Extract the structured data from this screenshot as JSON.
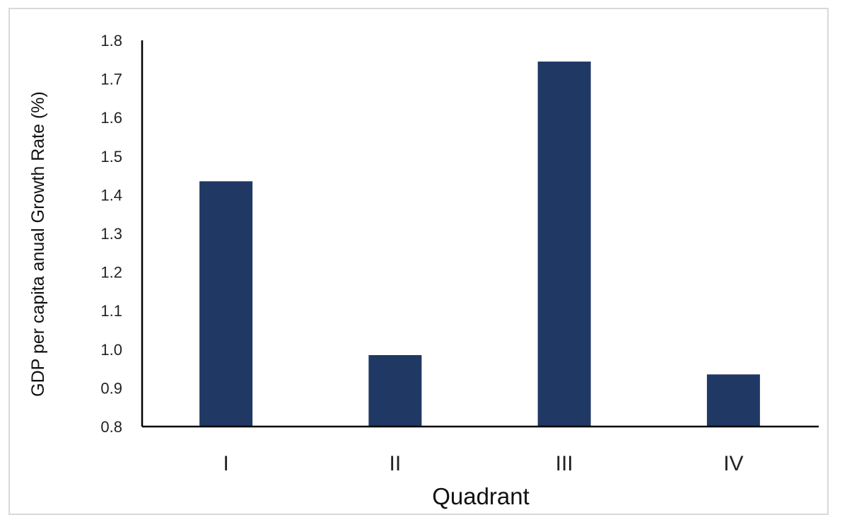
{
  "chart_data": {
    "type": "bar",
    "categories": [
      "I",
      "II",
      "III",
      "IV"
    ],
    "values": [
      1.435,
      0.985,
      1.745,
      0.935
    ],
    "xlabel": "Quadrant",
    "ylabel": "GDP per capita anual Growth Rate (%)",
    "ylim": [
      0.8,
      1.8
    ],
    "yticks": [
      "0.8",
      "0.9",
      "1.0",
      "1.1",
      "1.2",
      "1.3",
      "1.4",
      "1.5",
      "1.6",
      "1.7",
      "1.8"
    ],
    "grid": false,
    "legend": "none",
    "bar_color": "#203864"
  }
}
